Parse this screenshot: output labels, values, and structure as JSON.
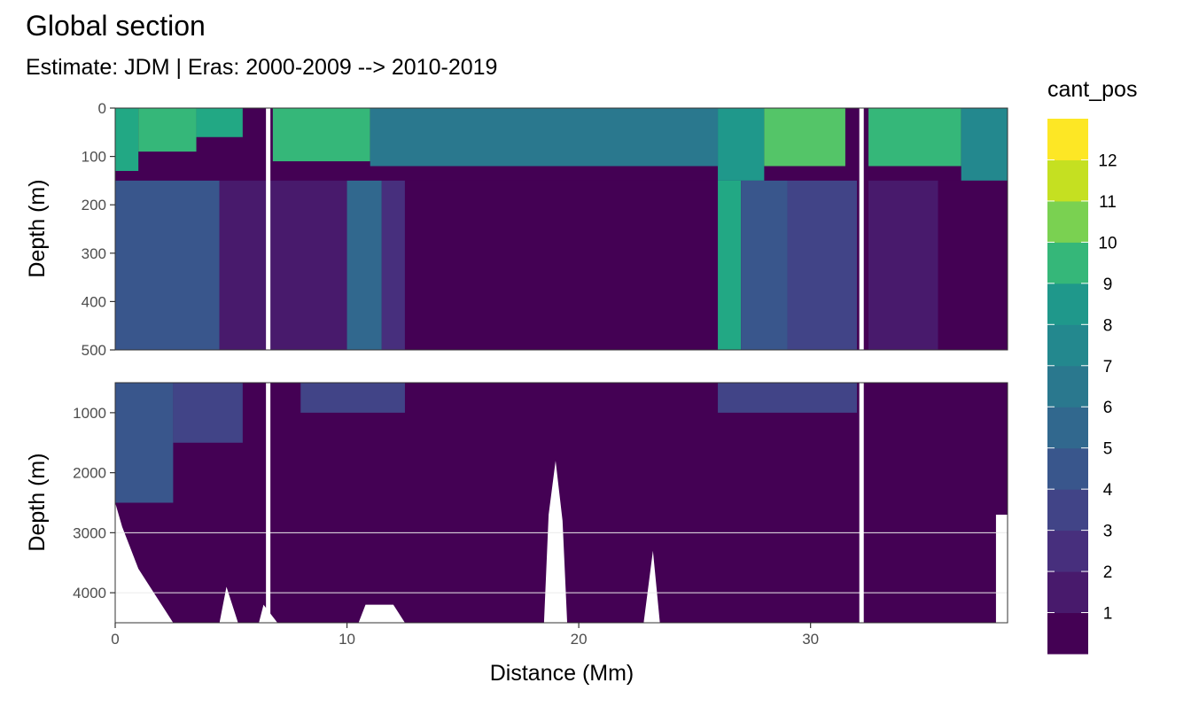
{
  "title": "Global section",
  "subtitle": "Estimate: JDM  | Eras: 2000-2009 --> 2010-2019",
  "colors": {
    "levels": [
      "#440154",
      "#481a6c",
      "#472f7d",
      "#414487",
      "#39568c",
      "#31688e",
      "#2a788e",
      "#23888e",
      "#1f988b",
      "#22a884",
      "#35b779",
      "#54c568",
      "#7ad151",
      "#a5db36",
      "#d2e21b",
      "#fde725"
    ],
    "panel_border": "#333333",
    "grid": "#ebebeb",
    "gap": "#ffffff"
  },
  "chart_data": {
    "type": "heatmap",
    "variable": "cant_pos",
    "x": {
      "label": "Distance (Mm)",
      "range": [
        0,
        38.5
      ],
      "ticks": [
        0,
        10,
        20,
        30
      ]
    },
    "y": {
      "label": "Depth (m)"
    },
    "panels": [
      {
        "name": "upper",
        "depth_range": [
          0,
          500
        ],
        "ticks": [
          0,
          100,
          200,
          300,
          400,
          500
        ]
      },
      {
        "name": "lower",
        "depth_range": [
          500,
          4500
        ],
        "ticks": [
          1000,
          2000,
          3000,
          4000
        ]
      }
    ],
    "data_gaps_x": [
      6.6,
      32.2
    ],
    "legend": {
      "title": "cant_pos",
      "labels": [
        "1",
        "2",
        "3",
        "4",
        "5",
        "6",
        "7",
        "8",
        "9",
        "10",
        "11",
        "12"
      ],
      "placement": "right"
    },
    "upper_regions": [
      {
        "x": [
          0.0,
          1.0
        ],
        "depth": [
          0,
          130
        ],
        "value": 9
      },
      {
        "x": [
          1.0,
          3.5
        ],
        "depth": [
          0,
          90
        ],
        "value": 10
      },
      {
        "x": [
          3.5,
          5.5
        ],
        "depth": [
          0,
          60
        ],
        "value": 9
      },
      {
        "x": [
          6.8,
          11.0
        ],
        "depth": [
          0,
          110
        ],
        "value": 10
      },
      {
        "x": [
          11.0,
          26.0
        ],
        "depth": [
          0,
          120
        ],
        "value": 6
      },
      {
        "x": [
          26.0,
          28.0
        ],
        "depth": [
          0,
          150
        ],
        "value": 8
      },
      {
        "x": [
          28.0,
          31.5
        ],
        "depth": [
          0,
          120
        ],
        "value": 11
      },
      {
        "x": [
          32.5,
          36.5
        ],
        "depth": [
          0,
          120
        ],
        "value": 10
      },
      {
        "x": [
          36.5,
          38.5
        ],
        "depth": [
          0,
          150
        ],
        "value": 7
      },
      {
        "x": [
          0.0,
          4.5
        ],
        "depth": [
          150,
          500
        ],
        "value": 4
      },
      {
        "x": [
          4.5,
          10.0
        ],
        "depth": [
          150,
          500
        ],
        "value": 1
      },
      {
        "x": [
          10.0,
          11.5
        ],
        "depth": [
          150,
          500
        ],
        "value": 5
      },
      {
        "x": [
          11.5,
          12.5
        ],
        "depth": [
          150,
          500
        ],
        "value": 2
      },
      {
        "x": [
          12.5,
          26.0
        ],
        "depth": [
          150,
          500
        ],
        "value": 0
      },
      {
        "x": [
          26.0,
          27.0
        ],
        "depth": [
          150,
          500
        ],
        "value": 9
      },
      {
        "x": [
          27.0,
          29.0
        ],
        "depth": [
          150,
          500
        ],
        "value": 4
      },
      {
        "x": [
          29.0,
          32.0
        ],
        "depth": [
          150,
          500
        ],
        "value": 3
      },
      {
        "x": [
          32.5,
          35.5
        ],
        "depth": [
          150,
          500
        ],
        "value": 1
      },
      {
        "x": [
          35.5,
          38.5
        ],
        "depth": [
          150,
          500
        ],
        "value": 0
      }
    ],
    "lower_regions": [
      {
        "x": [
          0.0,
          2.5
        ],
        "depth": [
          500,
          2500
        ],
        "value": 4
      },
      {
        "x": [
          2.5,
          5.5
        ],
        "depth": [
          500,
          1500
        ],
        "value": 3
      },
      {
        "x": [
          8.0,
          12.5
        ],
        "depth": [
          500,
          1000
        ],
        "value": 3
      },
      {
        "x": [
          26.0,
          32.0
        ],
        "depth": [
          500,
          1000
        ],
        "value": 3
      },
      {
        "x": [
          0.0,
          38.5
        ],
        "depth": [
          500,
          4500
        ],
        "value": 0
      }
    ],
    "seafloor_depth_m": [
      [
        0.0,
        2500
      ],
      [
        0.3,
        2900
      ],
      [
        0.6,
        3200
      ],
      [
        1.0,
        3600
      ],
      [
        1.5,
        3900
      ],
      [
        2.0,
        4200
      ],
      [
        2.5,
        4500
      ],
      [
        4.5,
        4500
      ],
      [
        4.8,
        3900
      ],
      [
        5.3,
        4500
      ],
      [
        6.2,
        4500
      ],
      [
        6.4,
        4200
      ],
      [
        7.0,
        4500
      ],
      [
        10.5,
        4500
      ],
      [
        10.8,
        4200
      ],
      [
        12.0,
        4200
      ],
      [
        12.5,
        4500
      ],
      [
        18.5,
        4500
      ],
      [
        18.7,
        2700
      ],
      [
        19.0,
        1800
      ],
      [
        19.3,
        2800
      ],
      [
        19.5,
        4500
      ],
      [
        22.8,
        4500
      ],
      [
        23.2,
        3300
      ],
      [
        23.5,
        4500
      ],
      [
        38.0,
        4500
      ],
      [
        38.0,
        2700
      ],
      [
        38.5,
        2700
      ]
    ]
  }
}
